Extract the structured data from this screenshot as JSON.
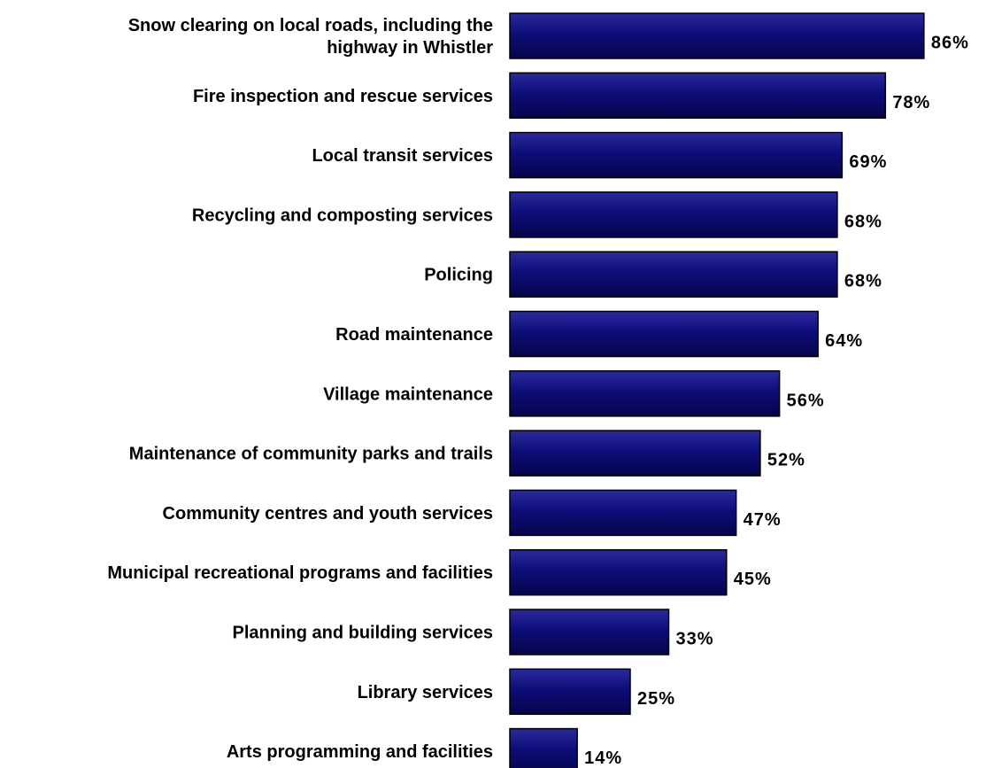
{
  "chart_data": {
    "type": "bar",
    "orientation": "horizontal",
    "categories": [
      "Snow clearing on local roads, including the highway in Whistler",
      "Fire inspection and rescue services",
      "Local transit services",
      "Recycling and composting services",
      "Policing",
      "Road maintenance",
      "Village maintenance",
      "Maintenance of community parks and trails",
      "Community centres and youth services",
      "Municipal recreational programs and facilities",
      "Planning and building services",
      "Library services",
      "Arts programming and facilities"
    ],
    "category_lines": [
      [
        "Snow clearing on local roads, including the",
        "highway in Whistler"
      ],
      [
        "Fire inspection and rescue services"
      ],
      [
        "Local transit services"
      ],
      [
        "Recycling and composting services"
      ],
      [
        "Policing"
      ],
      [
        "Road maintenance"
      ],
      [
        "Village maintenance"
      ],
      [
        "Maintenance of community parks and trails"
      ],
      [
        "Community centres and youth services"
      ],
      [
        "Municipal recreational programs and facilities"
      ],
      [
        "Planning and building services"
      ],
      [
        "Library services"
      ],
      [
        "Arts programming and facilities"
      ]
    ],
    "values": [
      86,
      78,
      69,
      68,
      68,
      64,
      56,
      52,
      47,
      45,
      33,
      25,
      14
    ],
    "value_labels": [
      "86%",
      "78%",
      "69%",
      "68%",
      "68%",
      "64%",
      "56%",
      "52%",
      "47%",
      "45%",
      "33%",
      "25%",
      "14%"
    ],
    "xlim": [
      0,
      100
    ],
    "grid": false,
    "legend": "none",
    "colors": {
      "bar_fill_top": "#2a2a9c",
      "bar_fill": "#0d0d7a",
      "bar_fill_bottom": "#05054a",
      "bar_stroke": "#000000",
      "text": "#000000"
    }
  }
}
